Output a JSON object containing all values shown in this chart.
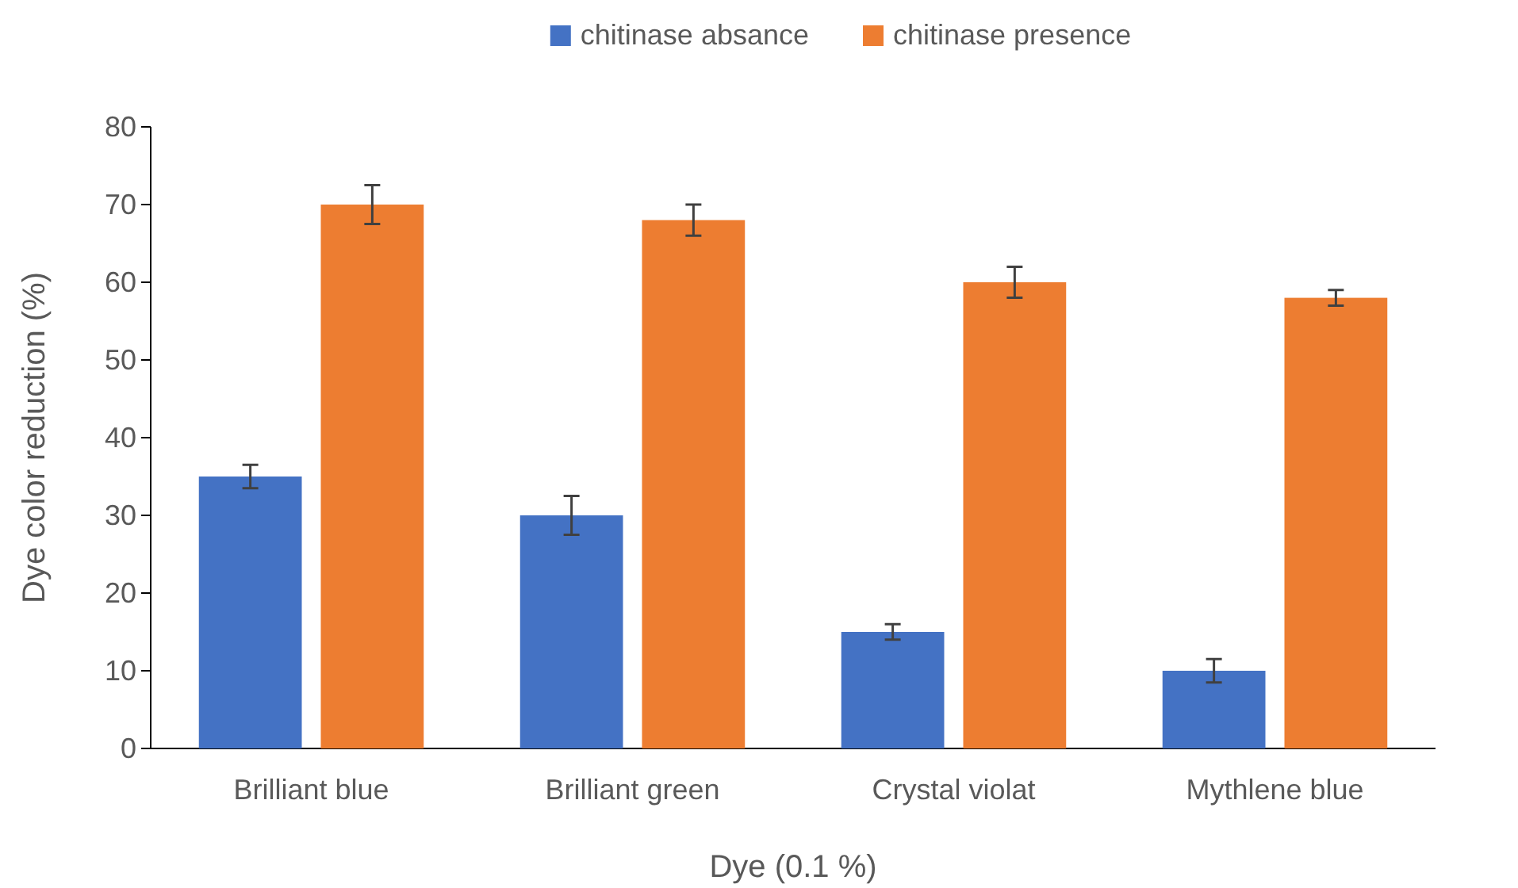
{
  "chart_data": {
    "type": "bar",
    "xlabel": "Dye (0.1 %)",
    "ylabel": "Dye color reduction (%)",
    "categories": [
      "Brilliant blue",
      "Brilliant green",
      "Crystal violat",
      "Mythlene blue"
    ],
    "series": [
      {
        "name": "chitinase absance",
        "color": "#4472c4",
        "values": [
          35,
          30,
          15,
          10
        ],
        "errors": [
          1.5,
          2.5,
          1,
          1.5
        ]
      },
      {
        "name": "chitinase presence",
        "color": "#ed7d31",
        "values": [
          70,
          68,
          60,
          58
        ],
        "errors": [
          2.5,
          2,
          2,
          1
        ]
      }
    ],
    "ylim": [
      0,
      80
    ],
    "yticks": [
      0,
      10,
      20,
      30,
      40,
      50,
      60,
      70,
      80
    ],
    "legend": "top"
  }
}
